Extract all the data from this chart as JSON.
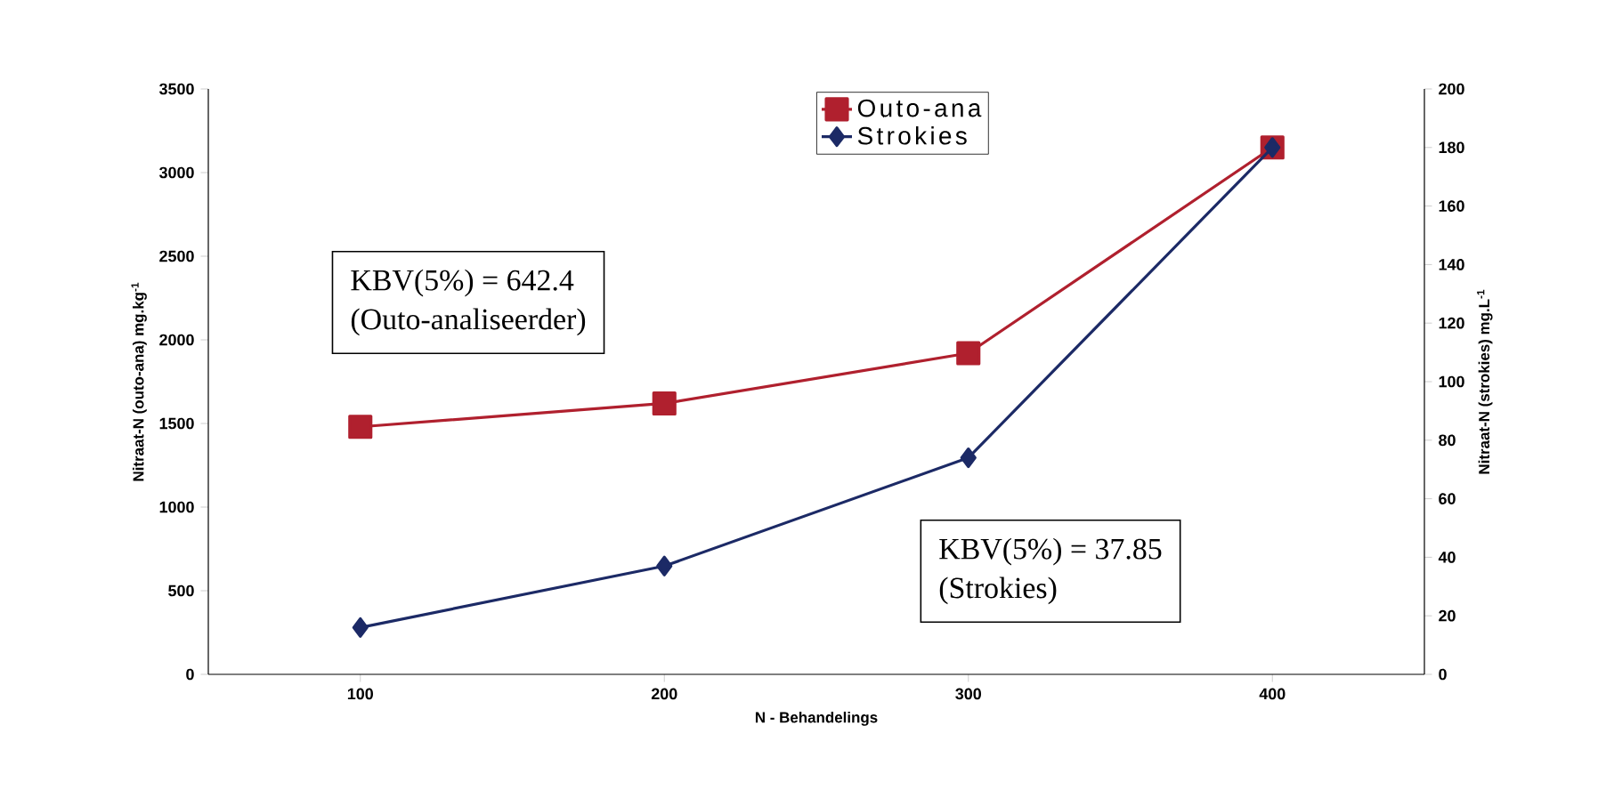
{
  "chart_data": {
    "type": "line",
    "xlabel": "N - Behandelings",
    "ylabel": "Nitraat-N (outo-ana) mg.kg$^{-1}$",
    "y2label": "Nitraat-N (strokies) mg.L$^{-1}$",
    "categories": [
      "100",
      "200",
      "300",
      "400"
    ],
    "series": [
      {
        "name": "Outo-ana",
        "color": "#b0202e",
        "marker": "square",
        "values": [
          1480,
          1620,
          1920,
          3150
        ]
      },
      {
        "name": "Strokies",
        "color": "#1c2a66",
        "marker": "diamond",
        "axis": "y2",
        "values": [
          16,
          37,
          74,
          180
        ]
      }
    ],
    "ylim": [
      0,
      3500
    ],
    "yticks": [
      0,
      500,
      1000,
      1500,
      2000,
      2500,
      3000,
      3500
    ],
    "y2lim": [
      0,
      200
    ],
    "y2ticks": [
      0,
      20,
      40,
      60,
      80,
      100,
      120,
      140,
      160,
      180,
      200
    ],
    "legend": "top right",
    "grid": false,
    "line_style": "solid",
    "annotations": [
      "KBV(5%) = 642.4",
      "(Outo-analiseerder)",
      "KBV(5%) = 37.85",
      "(Strokies)"
    ]
  }
}
